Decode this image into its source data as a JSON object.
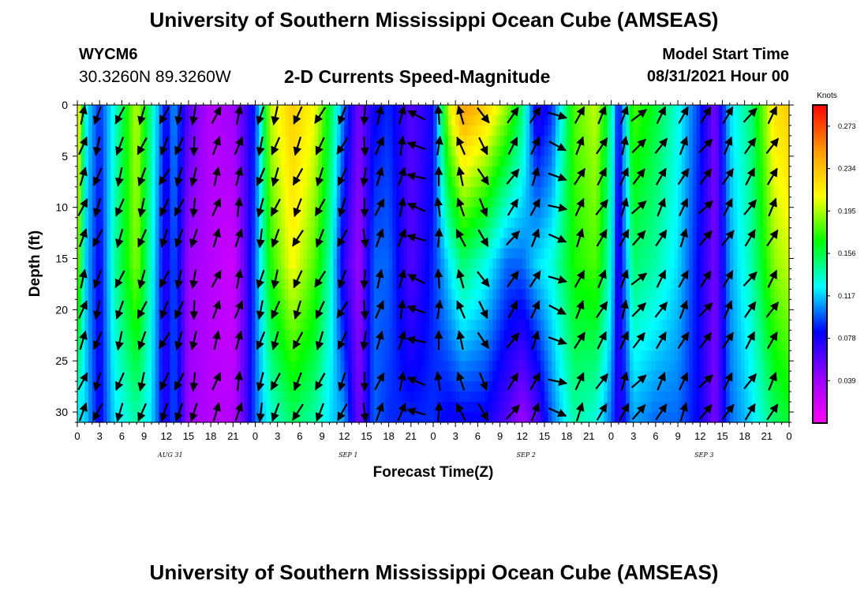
{
  "header": {
    "title": "University of Southern Mississippi Ocean Cube (AMSEAS)",
    "station_id": "WYCM6",
    "station_coords": "30.3260N  89.3260W",
    "plot_title": "2-D Currents Speed-Magnitude",
    "model_start_label": "Model Start Time",
    "model_start_value": "08/31/2021 Hour 00"
  },
  "footer": {
    "title": "University of Southern Mississippi Ocean Cube (AMSEAS)"
  },
  "chart_data": {
    "type": "heatmap",
    "title": "2-D Currents Speed-Magnitude",
    "xlabel": "Forecast Time(Z)",
    "ylabel": "Depth (ft)",
    "x_tick_labels": [
      "0",
      "3",
      "6",
      "9",
      "12",
      "15",
      "18",
      "21",
      "0",
      "3",
      "6",
      "9",
      "12",
      "15",
      "18",
      "21",
      "0",
      "3",
      "6",
      "9",
      "12",
      "15",
      "18",
      "21",
      "0",
      "3",
      "6",
      "9",
      "12",
      "15",
      "18",
      "21",
      "0"
    ],
    "x_range_hours": [
      0,
      96
    ],
    "date_labels": [
      {
        "label": "AUG 31",
        "hour": 12
      },
      {
        "label": "SEP 1",
        "hour": 36
      },
      {
        "label": "SEP 2",
        "hour": 60
      },
      {
        "label": "SEP 3",
        "hour": 84
      }
    ],
    "y_range_ft": [
      0,
      31
    ],
    "y_ticks": [
      "0",
      "5",
      "10",
      "15",
      "20",
      "25",
      "30"
    ],
    "colorbar": {
      "unit": "Knots",
      "ticks": [
        "0.273",
        "0.234",
        "0.195",
        "0.156",
        "0.117",
        "0.078",
        "0.039"
      ],
      "tick_values": [
        0.273,
        0.234,
        0.195,
        0.156,
        0.117,
        0.078,
        0.039
      ],
      "range": [
        0.0,
        0.2925
      ],
      "colors": [
        "#ff00ff",
        "#9900ff",
        "#0000ff",
        "#00ffff",
        "#00ff00",
        "#ffff00",
        "#ff9900",
        "#ff0000"
      ]
    },
    "speed_by_hour_surface_to_bottom": [
      {
        "hour": 0,
        "speeds": [
          0.23,
          0.2,
          0.12
        ]
      },
      {
        "hour": 1,
        "speeds": [
          0.13,
          0.12,
          0.12
        ]
      },
      {
        "hour": 3,
        "speeds": [
          0.09,
          0.08,
          0.08
        ]
      },
      {
        "hour": 5,
        "speeds": [
          0.13,
          0.14,
          0.12
        ]
      },
      {
        "hour": 8,
        "speeds": [
          0.2,
          0.19,
          0.14
        ]
      },
      {
        "hour": 10,
        "speeds": [
          0.14,
          0.13,
          0.12
        ]
      },
      {
        "hour": 12,
        "speeds": [
          0.08,
          0.07,
          0.07
        ]
      },
      {
        "hour": 13,
        "speeds": [
          0.11,
          0.1,
          0.1
        ]
      },
      {
        "hour": 15,
        "speeds": [
          0.06,
          0.04,
          0.04
        ]
      },
      {
        "hour": 18,
        "speeds": [
          0.03,
          0.03,
          0.03
        ]
      },
      {
        "hour": 21,
        "speeds": [
          0.04,
          0.02,
          0.03
        ]
      },
      {
        "hour": 23,
        "speeds": [
          0.07,
          0.07,
          0.07
        ]
      },
      {
        "hour": 24,
        "speeds": [
          0.09,
          0.1,
          0.1
        ]
      },
      {
        "hour": 26,
        "speeds": [
          0.2,
          0.17,
          0.13
        ]
      },
      {
        "hour": 29,
        "speeds": [
          0.23,
          0.21,
          0.15
        ]
      },
      {
        "hour": 32,
        "speeds": [
          0.21,
          0.18,
          0.14
        ]
      },
      {
        "hour": 34,
        "speeds": [
          0.16,
          0.14,
          0.12
        ]
      },
      {
        "hour": 36,
        "speeds": [
          0.1,
          0.07,
          0.11
        ]
      },
      {
        "hour": 38,
        "speeds": [
          0.05,
          0.04,
          0.05
        ]
      },
      {
        "hour": 40,
        "speeds": [
          0.08,
          0.1,
          0.1
        ]
      },
      {
        "hour": 42,
        "speeds": [
          0.09,
          0.1,
          0.09
        ]
      },
      {
        "hour": 45,
        "speeds": [
          0.06,
          0.06,
          0.09
        ]
      },
      {
        "hour": 48,
        "speeds": [
          0.08,
          0.09,
          0.09
        ]
      },
      {
        "hour": 50,
        "speeds": [
          0.2,
          0.12,
          0.08
        ]
      },
      {
        "hour": 52,
        "speeds": [
          0.25,
          0.15,
          0.08
        ]
      },
      {
        "hour": 55,
        "speeds": [
          0.23,
          0.13,
          0.08
        ]
      },
      {
        "hour": 58,
        "speeds": [
          0.19,
          0.1,
          0.06
        ]
      },
      {
        "hour": 60,
        "speeds": [
          0.15,
          0.1,
          0.04
        ]
      },
      {
        "hour": 62,
        "speeds": [
          0.07,
          0.12,
          0.06
        ]
      },
      {
        "hour": 64,
        "speeds": [
          0.09,
          0.13,
          0.1
        ]
      },
      {
        "hour": 67,
        "speeds": [
          0.18,
          0.17,
          0.14
        ]
      },
      {
        "hour": 70,
        "speeds": [
          0.2,
          0.18,
          0.13
        ]
      },
      {
        "hour": 72,
        "speeds": [
          0.14,
          0.13,
          0.1
        ]
      },
      {
        "hour": 73,
        "speeds": [
          0.08,
          0.07,
          0.07
        ]
      },
      {
        "hour": 75,
        "speeds": [
          0.18,
          0.15,
          0.11
        ]
      },
      {
        "hour": 78,
        "speeds": [
          0.16,
          0.14,
          0.1
        ]
      },
      {
        "hour": 81,
        "speeds": [
          0.13,
          0.12,
          0.1
        ]
      },
      {
        "hour": 84,
        "speeds": [
          0.09,
          0.08,
          0.08
        ]
      },
      {
        "hour": 86,
        "speeds": [
          0.05,
          0.05,
          0.05
        ]
      },
      {
        "hour": 88,
        "speeds": [
          0.12,
          0.11,
          0.1
        ]
      },
      {
        "hour": 91,
        "speeds": [
          0.15,
          0.14,
          0.12
        ]
      },
      {
        "hour": 94,
        "speeds": [
          0.22,
          0.19,
          0.15
        ]
      },
      {
        "hour": 96,
        "speeds": [
          0.23,
          0.2,
          0.16
        ]
      }
    ],
    "arrows_hours": [
      0,
      2,
      5,
      8,
      11,
      13,
      15,
      18,
      21,
      24,
      26,
      29,
      32,
      35,
      38,
      40,
      43,
      45,
      48,
      51,
      54,
      58,
      61,
      64,
      67,
      70,
      73,
      75,
      78,
      81,
      84,
      87,
      90,
      93
    ],
    "arrow_depths_ft": [
      0,
      3,
      6,
      9,
      12,
      16,
      19,
      22,
      26,
      29
    ],
    "arrow_directions_deg_by_hour": [
      20,
      200,
      200,
      200,
      205,
      200,
      190,
      20,
      15,
      195,
      200,
      205,
      205,
      205,
      180,
      20,
      15,
      290,
      0,
      340,
      150,
      35,
      25,
      110,
      25,
      30,
      20,
      45,
      30,
      25,
      40,
      30,
      35,
      30
    ]
  }
}
